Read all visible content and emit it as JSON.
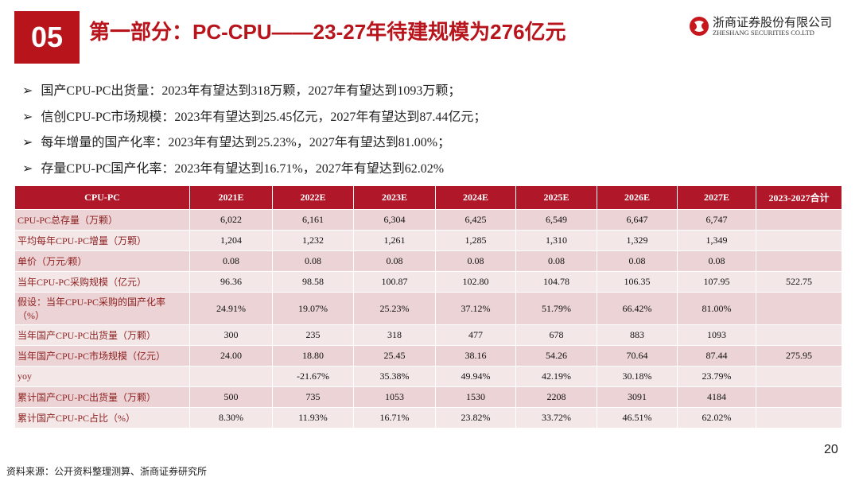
{
  "header": {
    "section_number": "05",
    "title": "第一部分：PC-CPU——23-27年待建规模为276亿元",
    "logo_name": "浙商证券股份有限公司",
    "logo_english": "ZHESHANG SECURITIES CO.LTD"
  },
  "bullets": [
    "国产CPU-PC出货量：2023年有望达到318万颗，2027年有望达到1093万颗；",
    "信创CPU-PC市场规模：2023年有望达到25.45亿元，2027年有望达到87.44亿元；",
    "每年增量的国产化率：2023年有望达到25.23%，2027年有望达到81.00%；",
    "存量CPU-PC国产化率：2023年有望达到16.71%，2027年有望达到62.02%"
  ],
  "table": {
    "columns": [
      "CPU-PC",
      "2021E",
      "2022E",
      "2023E",
      "2024E",
      "2025E",
      "2026E",
      "2027E",
      "2023-2027合计"
    ],
    "rows": [
      [
        "CPU-PC总存量（万颗）",
        "6,022",
        "6,161",
        "6,304",
        "6,425",
        "6,549",
        "6,647",
        "6,747",
        null
      ],
      [
        "平均每年CPU-PC增量（万颗）",
        "1,204",
        "1,232",
        "1,261",
        "1,285",
        "1,310",
        "1,329",
        "1,349",
        null
      ],
      [
        "单价（万元/颗）",
        "0.08",
        "0.08",
        "0.08",
        "0.08",
        "0.08",
        "0.08",
        "0.08",
        null
      ],
      [
        "当年CPU-PC采购规模（亿元）",
        "96.36",
        "98.58",
        "100.87",
        "102.80",
        "104.78",
        "106.35",
        "107.95",
        "522.75"
      ],
      [
        "假设：当年CPU-PC采购的国产化率（%）",
        "24.91%",
        "19.07%",
        "25.23%",
        "37.12%",
        "51.79%",
        "66.42%",
        "81.00%",
        null
      ],
      [
        "当年国产CPU-PC出货量（万颗）",
        "300",
        "235",
        "318",
        "477",
        "678",
        "883",
        "1093",
        null
      ],
      [
        "当年国产CPU-PC市场规模（亿元）",
        "24.00",
        "18.80",
        "25.45",
        "38.16",
        "54.26",
        "70.64",
        "87.44",
        "275.95"
      ],
      [
        "yoy",
        null,
        "-21.67%",
        "35.38%",
        "49.94%",
        "42.19%",
        "30.18%",
        "23.79%",
        null
      ],
      [
        "累计国产CPU-PC出货量（万颗）",
        "500",
        "735",
        "1053",
        "1530",
        "2208",
        "3091",
        "4184",
        null
      ],
      [
        "累计国产CPU-PC占比（%）",
        "8.30%",
        "11.93%",
        "16.71%",
        "23.82%",
        "33.72%",
        "46.51%",
        "62.02%",
        null
      ]
    ]
  },
  "footer": {
    "source": "资料来源：公开资料整理测算、浙商证券研究所",
    "page_number": "20"
  }
}
